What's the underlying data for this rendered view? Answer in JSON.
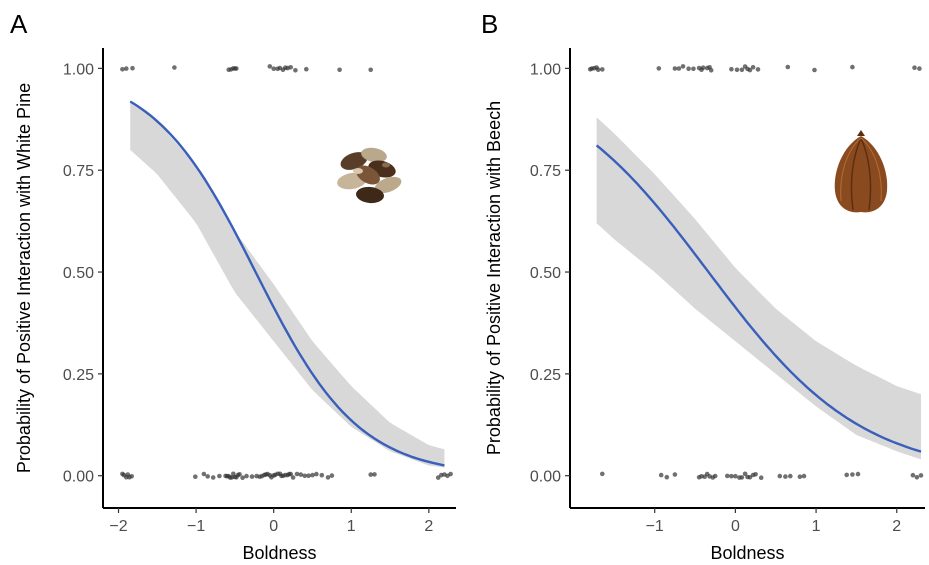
{
  "chart_data": [
    {
      "type": "scatter",
      "panel_label": "A",
      "xlabel": "Boldness",
      "ylabel": "Probability of Positive Interaction with White Pine",
      "xlim": [
        -2.2,
        2.35
      ],
      "ylim": [
        -0.04,
        1.05
      ],
      "xticks": [
        -2,
        -1,
        0,
        1,
        2
      ],
      "xtick_labels": [
        "−2",
        "−1",
        "0",
        "1",
        "2"
      ],
      "yticks": [
        0,
        0.25,
        0.5,
        0.75,
        1
      ],
      "ytick_labels": [
        "0.00",
        "0.25",
        "0.50",
        "0.75",
        "1.00"
      ],
      "logistic_fit": {
        "intercept": -0.35,
        "slope": -1.5,
        "x_range": [
          -1.85,
          2.2
        ]
      },
      "ci_band": {
        "x": [
          -1.85,
          -1.5,
          -1.0,
          -0.5,
          0,
          0.5,
          1.0,
          1.5,
          2.0,
          2.2
        ],
        "lower": [
          0.8,
          0.74,
          0.62,
          0.45,
          0.33,
          0.21,
          0.12,
          0.06,
          0.025,
          0.02
        ],
        "upper": [
          0.92,
          0.87,
          0.76,
          0.6,
          0.47,
          0.33,
          0.22,
          0.13,
          0.075,
          0.065
        ]
      },
      "points": {
        "y1_x": [
          -1.95,
          -1.9,
          -1.82,
          -1.28,
          -0.58,
          -0.55,
          -0.52,
          -0.5,
          -0.48,
          -0.05,
          0.0,
          0.05,
          0.08,
          0.12,
          0.15,
          0.18,
          0.22,
          0.28,
          0.42,
          0.85,
          1.25
        ],
        "y0_x": [
          -1.95,
          -1.93,
          -1.9,
          -1.88,
          -1.86,
          -1.83,
          -1.01,
          -0.9,
          -0.85,
          -0.78,
          -0.7,
          -0.62,
          -0.6,
          -0.58,
          -0.56,
          -0.54,
          -0.52,
          -0.5,
          -0.48,
          -0.46,
          -0.44,
          -0.4,
          -0.35,
          -0.28,
          -0.22,
          -0.18,
          -0.15,
          -0.12,
          -0.1,
          -0.08,
          -0.05,
          -0.03,
          0.0,
          0.02,
          0.05,
          0.08,
          0.1,
          0.12,
          0.15,
          0.18,
          0.2,
          0.22,
          0.25,
          0.3,
          0.35,
          0.4,
          0.45,
          0.5,
          0.55,
          0.62,
          0.7,
          0.75,
          1.25,
          1.3,
          2.12,
          2.16,
          2.2,
          2.24,
          2.28
        ]
      },
      "seed_image": "white-pine-seeds"
    },
    {
      "type": "scatter",
      "panel_label": "B",
      "xlabel": "Boldness",
      "ylabel": "Probability of Positive Interaction with Beech",
      "xlim": [
        -2.05,
        2.35
      ],
      "ylim": [
        -0.04,
        1.05
      ],
      "xticks": [
        -1,
        0,
        1,
        2
      ],
      "xtick_labels": [
        "−1",
        "0",
        "1",
        "2"
      ],
      "yticks": [
        0,
        0.25,
        0.5,
        0.75,
        1
      ],
      "ytick_labels": [
        "0.00",
        "0.25",
        "0.50",
        "0.75",
        "1.00"
      ],
      "logistic_fit": {
        "intercept": -0.35,
        "slope": -1.05,
        "x_range": [
          -1.72,
          2.3
        ]
      },
      "ci_band": {
        "x": [
          -1.72,
          -1.5,
          -1.0,
          -0.5,
          0,
          0.5,
          1.0,
          1.5,
          2.0,
          2.3
        ],
        "lower": [
          0.62,
          0.58,
          0.5,
          0.41,
          0.33,
          0.25,
          0.17,
          0.1,
          0.06,
          0.04
        ],
        "upper": [
          0.88,
          0.84,
          0.74,
          0.63,
          0.51,
          0.41,
          0.33,
          0.27,
          0.22,
          0.2
        ]
      },
      "points": {
        "y1_x": [
          -1.8,
          -1.78,
          -1.75,
          -1.72,
          -1.7,
          -1.65,
          -0.95,
          -0.75,
          -0.7,
          -0.65,
          -0.58,
          -0.52,
          -0.45,
          -0.42,
          -0.4,
          -0.35,
          -0.32,
          -0.3,
          -0.05,
          0.02,
          0.08,
          0.12,
          0.15,
          0.18,
          0.22,
          0.28,
          0.65,
          0.98,
          1.45,
          2.22,
          2.28
        ],
        "y0_x": [
          -1.65,
          -0.92,
          -0.85,
          -0.75,
          -0.45,
          -0.42,
          -0.38,
          -0.35,
          -0.32,
          -0.28,
          -0.25,
          -0.1,
          -0.05,
          0.0,
          0.05,
          0.08,
          0.12,
          0.15,
          0.18,
          0.22,
          0.25,
          0.32,
          0.55,
          0.62,
          0.68,
          0.8,
          0.85,
          1.38,
          1.45,
          1.52,
          2.2,
          2.25,
          2.3
        ]
      },
      "seed_image": "beech-seed"
    }
  ]
}
